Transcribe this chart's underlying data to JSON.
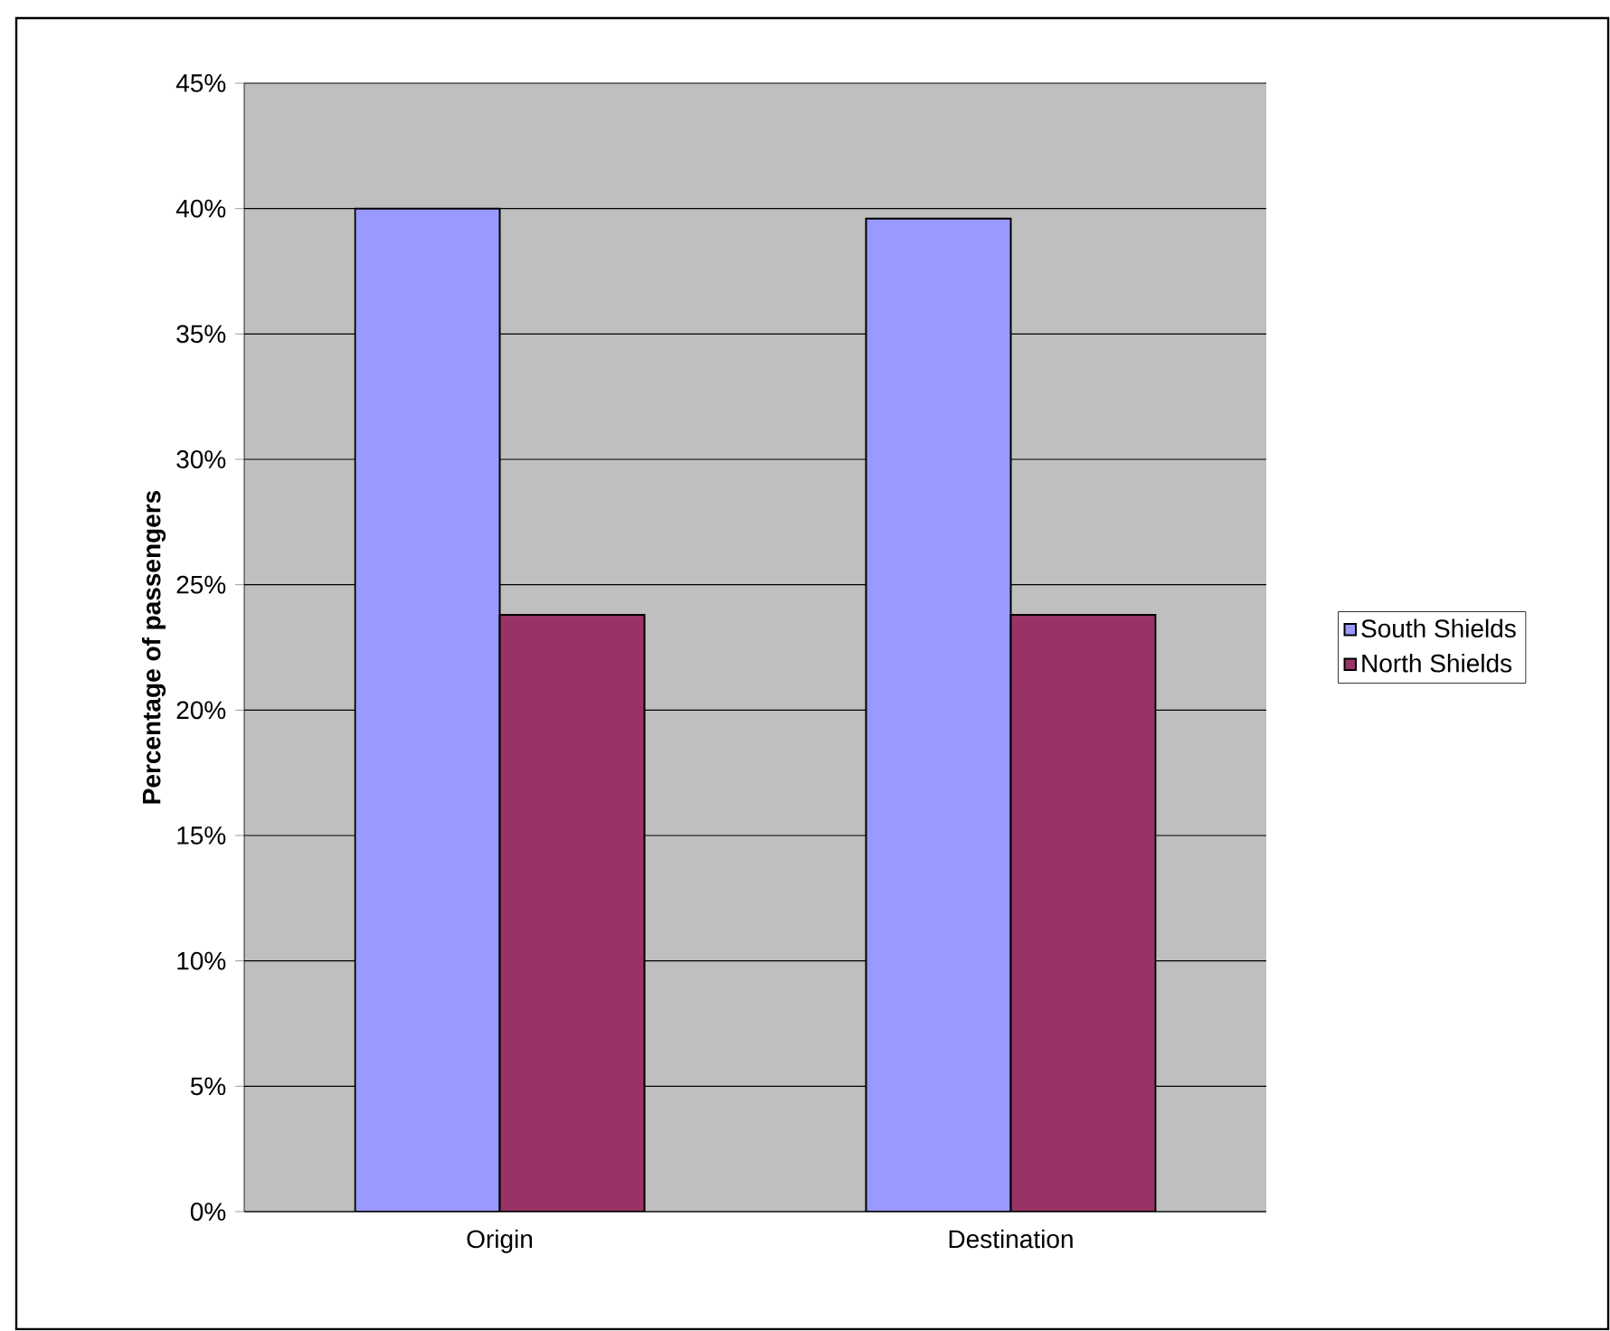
{
  "chart_data": {
    "type": "bar",
    "ylabel": "Percentage of passengers",
    "categories": [
      "Origin",
      "Destination"
    ],
    "series": [
      {
        "name": "South Shields",
        "color": "#9999ff",
        "values": [
          40.0,
          39.6
        ]
      },
      {
        "name": "North Shields",
        "color": "#993366",
        "values": [
          23.8,
          23.8
        ]
      }
    ],
    "ylim": [
      0,
      45
    ],
    "yticks": [
      {
        "value": 0,
        "label": "0%"
      },
      {
        "value": 5,
        "label": "5%"
      },
      {
        "value": 10,
        "label": "10%"
      },
      {
        "value": 15,
        "label": "15%"
      },
      {
        "value": 20,
        "label": "20%"
      },
      {
        "value": 25,
        "label": "25%"
      },
      {
        "value": 30,
        "label": "30%"
      },
      {
        "value": 35,
        "label": "35%"
      },
      {
        "value": 40,
        "label": "40%"
      },
      {
        "value": 45,
        "label": "45%"
      }
    ],
    "grid": "y",
    "legend": "right"
  }
}
